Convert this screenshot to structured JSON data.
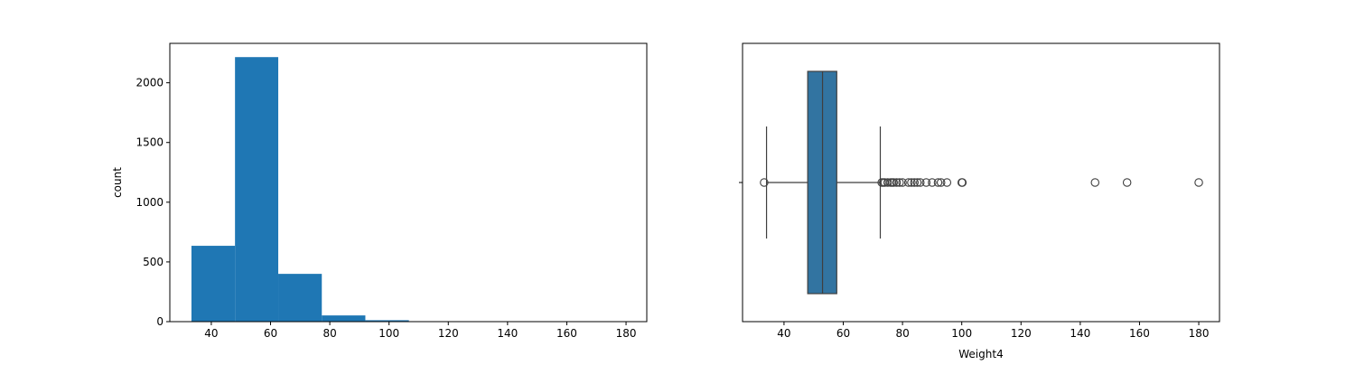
{
  "chart_data": [
    {
      "type": "bar",
      "subtype": "histogram",
      "xlabel": "",
      "ylabel": "count",
      "xlim": [
        26,
        187
      ],
      "ylim": [
        0,
        2330
      ],
      "xticks": [
        40,
        60,
        80,
        100,
        120,
        140,
        160,
        180
      ],
      "yticks": [
        0,
        500,
        1000,
        1500,
        2000
      ],
      "color": "#1f77b4",
      "bins": [
        {
          "x0": 33.3,
          "x1": 48.0,
          "count": 635
        },
        {
          "x0": 48.0,
          "x1": 62.6,
          "count": 2215
        },
        {
          "x0": 62.6,
          "x1": 77.3,
          "count": 400
        },
        {
          "x0": 77.3,
          "x1": 92.0,
          "count": 52
        },
        {
          "x0": 92.0,
          "x1": 106.7,
          "count": 12
        },
        {
          "x0": 106.7,
          "x1": 121.3,
          "count": 0
        },
        {
          "x0": 121.3,
          "x1": 136.0,
          "count": 0
        },
        {
          "x0": 136.0,
          "x1": 150.6,
          "count": 1
        },
        {
          "x0": 150.6,
          "x1": 165.3,
          "count": 1
        },
        {
          "x0": 165.3,
          "x1": 180.0,
          "count": 1
        }
      ],
      "grid": false
    },
    {
      "type": "boxplot",
      "xlabel": "Weight4",
      "ylabel": "",
      "xlim": [
        26,
        187
      ],
      "xticks": [
        40,
        60,
        80,
        100,
        120,
        140,
        160,
        180
      ],
      "color": "#3274a1",
      "box": {
        "whisker_low": 34.1,
        "q1": 48.0,
        "median": 53.0,
        "q3": 57.8,
        "whisker_high": 72.5
      },
      "outliers": [
        33.3,
        73,
        73.5,
        74,
        75,
        76,
        76.5,
        77,
        78,
        79,
        80,
        82,
        83,
        84,
        85,
        86,
        88,
        90,
        92,
        93,
        95,
        100,
        100.2,
        145,
        155.8,
        180
      ],
      "grid": false
    }
  ]
}
